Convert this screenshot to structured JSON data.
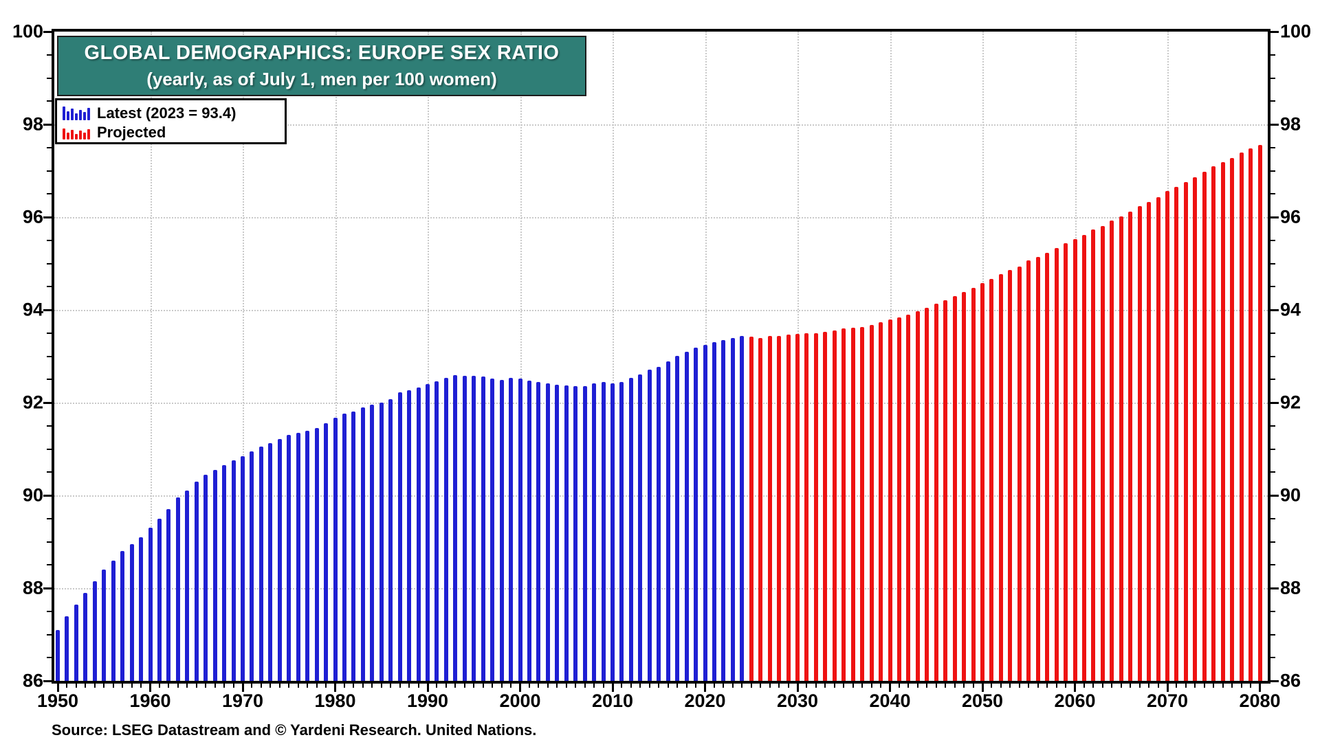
{
  "header": {
    "title": "GLOBAL DEMOGRAPHICS: EUROPE SEX RATIO",
    "subtitle": "(yearly, as of July 1, men per 100 women)"
  },
  "legend": {
    "latest_label": "Latest (2023 = 93.4)",
    "projected_label": "Projected"
  },
  "source": "Source: LSEG Datastream and © Yardeni Research. United Nations.",
  "colors": {
    "latest": "#1F1FD3",
    "projected": "#EE1212",
    "title_background": "#2F7E76",
    "gridline": "#c9c9c9",
    "axis": "#000000"
  },
  "chart_data": {
    "type": "bar",
    "title": "GLOBAL DEMOGRAPHICS: EUROPE SEX RATIO",
    "subtitle": "(yearly, as of July 1, men per 100 women)",
    "ylabel": "men per 100 women",
    "ylim": [
      86,
      100
    ],
    "yticks": [
      86,
      88,
      90,
      92,
      94,
      96,
      98,
      100
    ],
    "ygrid_values": [
      88,
      90,
      92,
      94,
      96,
      98
    ],
    "xticks": [
      1950,
      1960,
      1970,
      1980,
      1990,
      2000,
      2010,
      2020,
      2030,
      2040,
      2050,
      2060,
      2070,
      2080
    ],
    "x_range": [
      1950,
      2080
    ],
    "grid": true,
    "legend_position": "top-left",
    "series": [
      {
        "name": "Latest (2023 = 93.4)",
        "color": "#1F1FD3",
        "start_year": 1950,
        "values": [
          87.1,
          87.4,
          87.65,
          87.9,
          88.15,
          88.4,
          88.6,
          88.8,
          88.95,
          89.1,
          89.3,
          89.5,
          89.7,
          89.95,
          90.1,
          90.3,
          90.45,
          90.55,
          90.65,
          90.75,
          90.85,
          90.95,
          91.05,
          91.12,
          91.22,
          91.3,
          91.35,
          91.4,
          91.45,
          91.55,
          91.67,
          91.76,
          91.81,
          91.89,
          91.95,
          92.0,
          92.08,
          92.22,
          92.27,
          92.32,
          92.4,
          92.46,
          92.54,
          92.6,
          92.58,
          92.58,
          92.57,
          92.52,
          92.49,
          92.53,
          92.52,
          92.48,
          92.44,
          92.42,
          92.39,
          92.37,
          92.35,
          92.35,
          92.42,
          92.44,
          92.41,
          92.44,
          92.53,
          92.61,
          92.71,
          92.77,
          92.89,
          93.01,
          93.1,
          93.19,
          93.25,
          93.3,
          93.35,
          93.4,
          93.44
        ]
      },
      {
        "name": "Projected",
        "color": "#EE1212",
        "start_year": 2025,
        "values": [
          93.42,
          93.4,
          93.43,
          93.43,
          93.46,
          93.48,
          93.5,
          93.5,
          93.52,
          93.55,
          93.6,
          93.62,
          93.63,
          93.67,
          93.73,
          93.79,
          93.83,
          93.9,
          93.97,
          94.04,
          94.13,
          94.21,
          94.3,
          94.39,
          94.48,
          94.58,
          94.66,
          94.77,
          94.86,
          94.93,
          95.06,
          95.14,
          95.23,
          95.34,
          95.44,
          95.52,
          95.62,
          95.73,
          95.81,
          95.93,
          96.01,
          96.12,
          96.24,
          96.32,
          96.43,
          96.56,
          96.65,
          96.76,
          96.86,
          96.98,
          97.09,
          97.19,
          97.28,
          97.4,
          97.48,
          97.56
        ]
      }
    ]
  }
}
